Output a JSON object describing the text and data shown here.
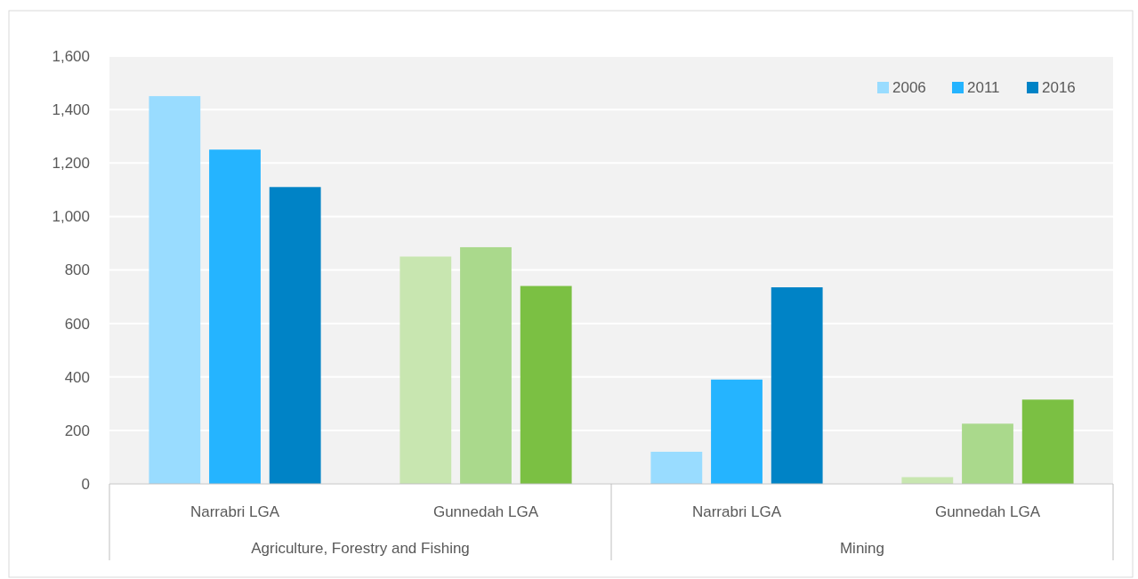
{
  "chart_data": {
    "type": "bar",
    "categories": [
      "Narrabri LGA",
      "Gunnedah LGA",
      "Narrabri LGA",
      "Gunnedah LGA"
    ],
    "series": [
      {
        "name": "2006",
        "color": "#99dcff",
        "colors": [
          "#99dcff",
          "#c8e6b0",
          "#99dcff",
          "#c8e6b0"
        ],
        "values": [
          1450,
          850,
          120,
          25
        ]
      },
      {
        "name": "2011",
        "color": "#25b4ff",
        "colors": [
          "#25b4ff",
          "#aad98c",
          "#25b4ff",
          "#aad98c"
        ],
        "values": [
          1250,
          885,
          390,
          225
        ]
      },
      {
        "name": "2016",
        "color": "#0083c6",
        "colors": [
          "#0083c6",
          "#7bc043",
          "#0083c6",
          "#7bc043"
        ],
        "values": [
          1110,
          740,
          735,
          315
        ]
      }
    ],
    "annotations": [
      "Agriculture, Forestry and Fishing",
      "Mining"
    ],
    "ylim": [
      0,
      1600
    ],
    "yticks": [
      0,
      {
        "value": 200,
        "label": "200"
      },
      {
        "value": 400,
        "label": "400"
      },
      {
        "value": 600,
        "label": "600"
      },
      {
        "value": 800,
        "label": "800"
      },
      {
        "value": 1000,
        "label": "1,000"
      },
      {
        "value": 1200,
        "label": "1,200"
      },
      {
        "value": 1400,
        "label": "1,400"
      },
      {
        "value": 1600,
        "label": "1,600"
      }
    ],
    "grid": "y",
    "legend": "top right"
  }
}
